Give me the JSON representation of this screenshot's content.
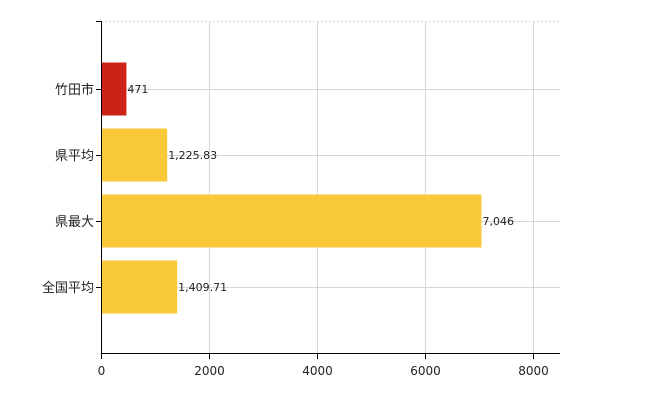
{
  "chart_data": {
    "type": "bar",
    "orientation": "horizontal",
    "categories": [
      "竹田市",
      "県平均",
      "県最大",
      "全国平均"
    ],
    "values": [
      471,
      1225.83,
      7046,
      1409.71
    ],
    "value_labels": [
      "471",
      "1,225.83",
      "7,046",
      "1,409.71"
    ],
    "bar_colors": [
      "#cc2218",
      "#f9c93a",
      "#f9c93a",
      "#f9c93a"
    ],
    "x_ticks": [
      0,
      2000,
      4000,
      6000,
      8000
    ],
    "x_tick_labels": [
      "0",
      "2000",
      "4000",
      "6000",
      "8000"
    ],
    "xlim": [
      0,
      8500
    ],
    "grid": true,
    "title": "",
    "xlabel": "",
    "ylabel": ""
  }
}
